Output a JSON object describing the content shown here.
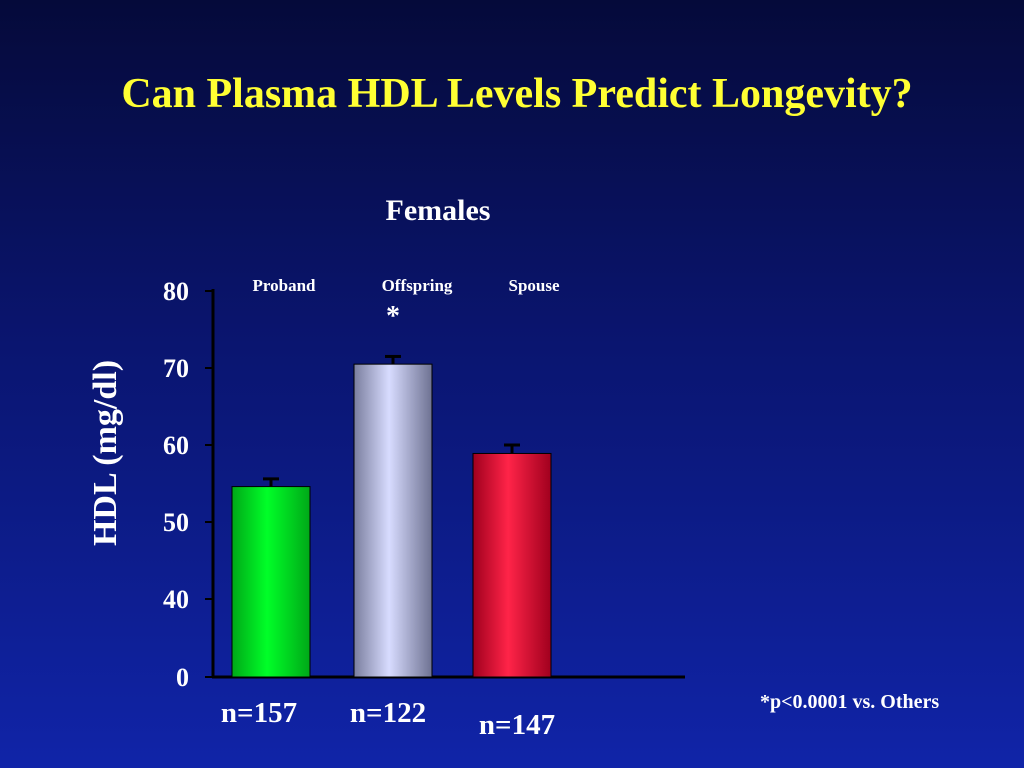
{
  "slide": {
    "title": "Can Plasma HDL Levels Predict Longevity?",
    "subtitle": "Females",
    "footnote": "*p<0.0001 vs. Others"
  },
  "colors": {
    "title": "#ffff33",
    "text": "#ffffff",
    "axis": "#000000",
    "background_top": "#050a3a",
    "background_bottom": "#1024a8"
  },
  "chart_data": {
    "type": "bar",
    "title": "Females",
    "ylabel": "HDL (mg/dl)",
    "xlabel": "",
    "categories": [
      "Proband",
      "Offspring",
      "Spouse"
    ],
    "values": [
      54.6,
      70.5,
      58.9
    ],
    "error": [
      1.0,
      1.0,
      1.1
    ],
    "n_labels": [
      "n=157",
      "n=122",
      "n=147"
    ],
    "significance": [
      "",
      "*",
      ""
    ],
    "bar_colors": [
      "#00ee22",
      "#c8ccff",
      "#ff1c44"
    ],
    "y_ticks": [
      0,
      40,
      50,
      60,
      70,
      80
    ],
    "ylim": [
      0,
      80
    ],
    "y_axis_break": true,
    "grid": false
  }
}
